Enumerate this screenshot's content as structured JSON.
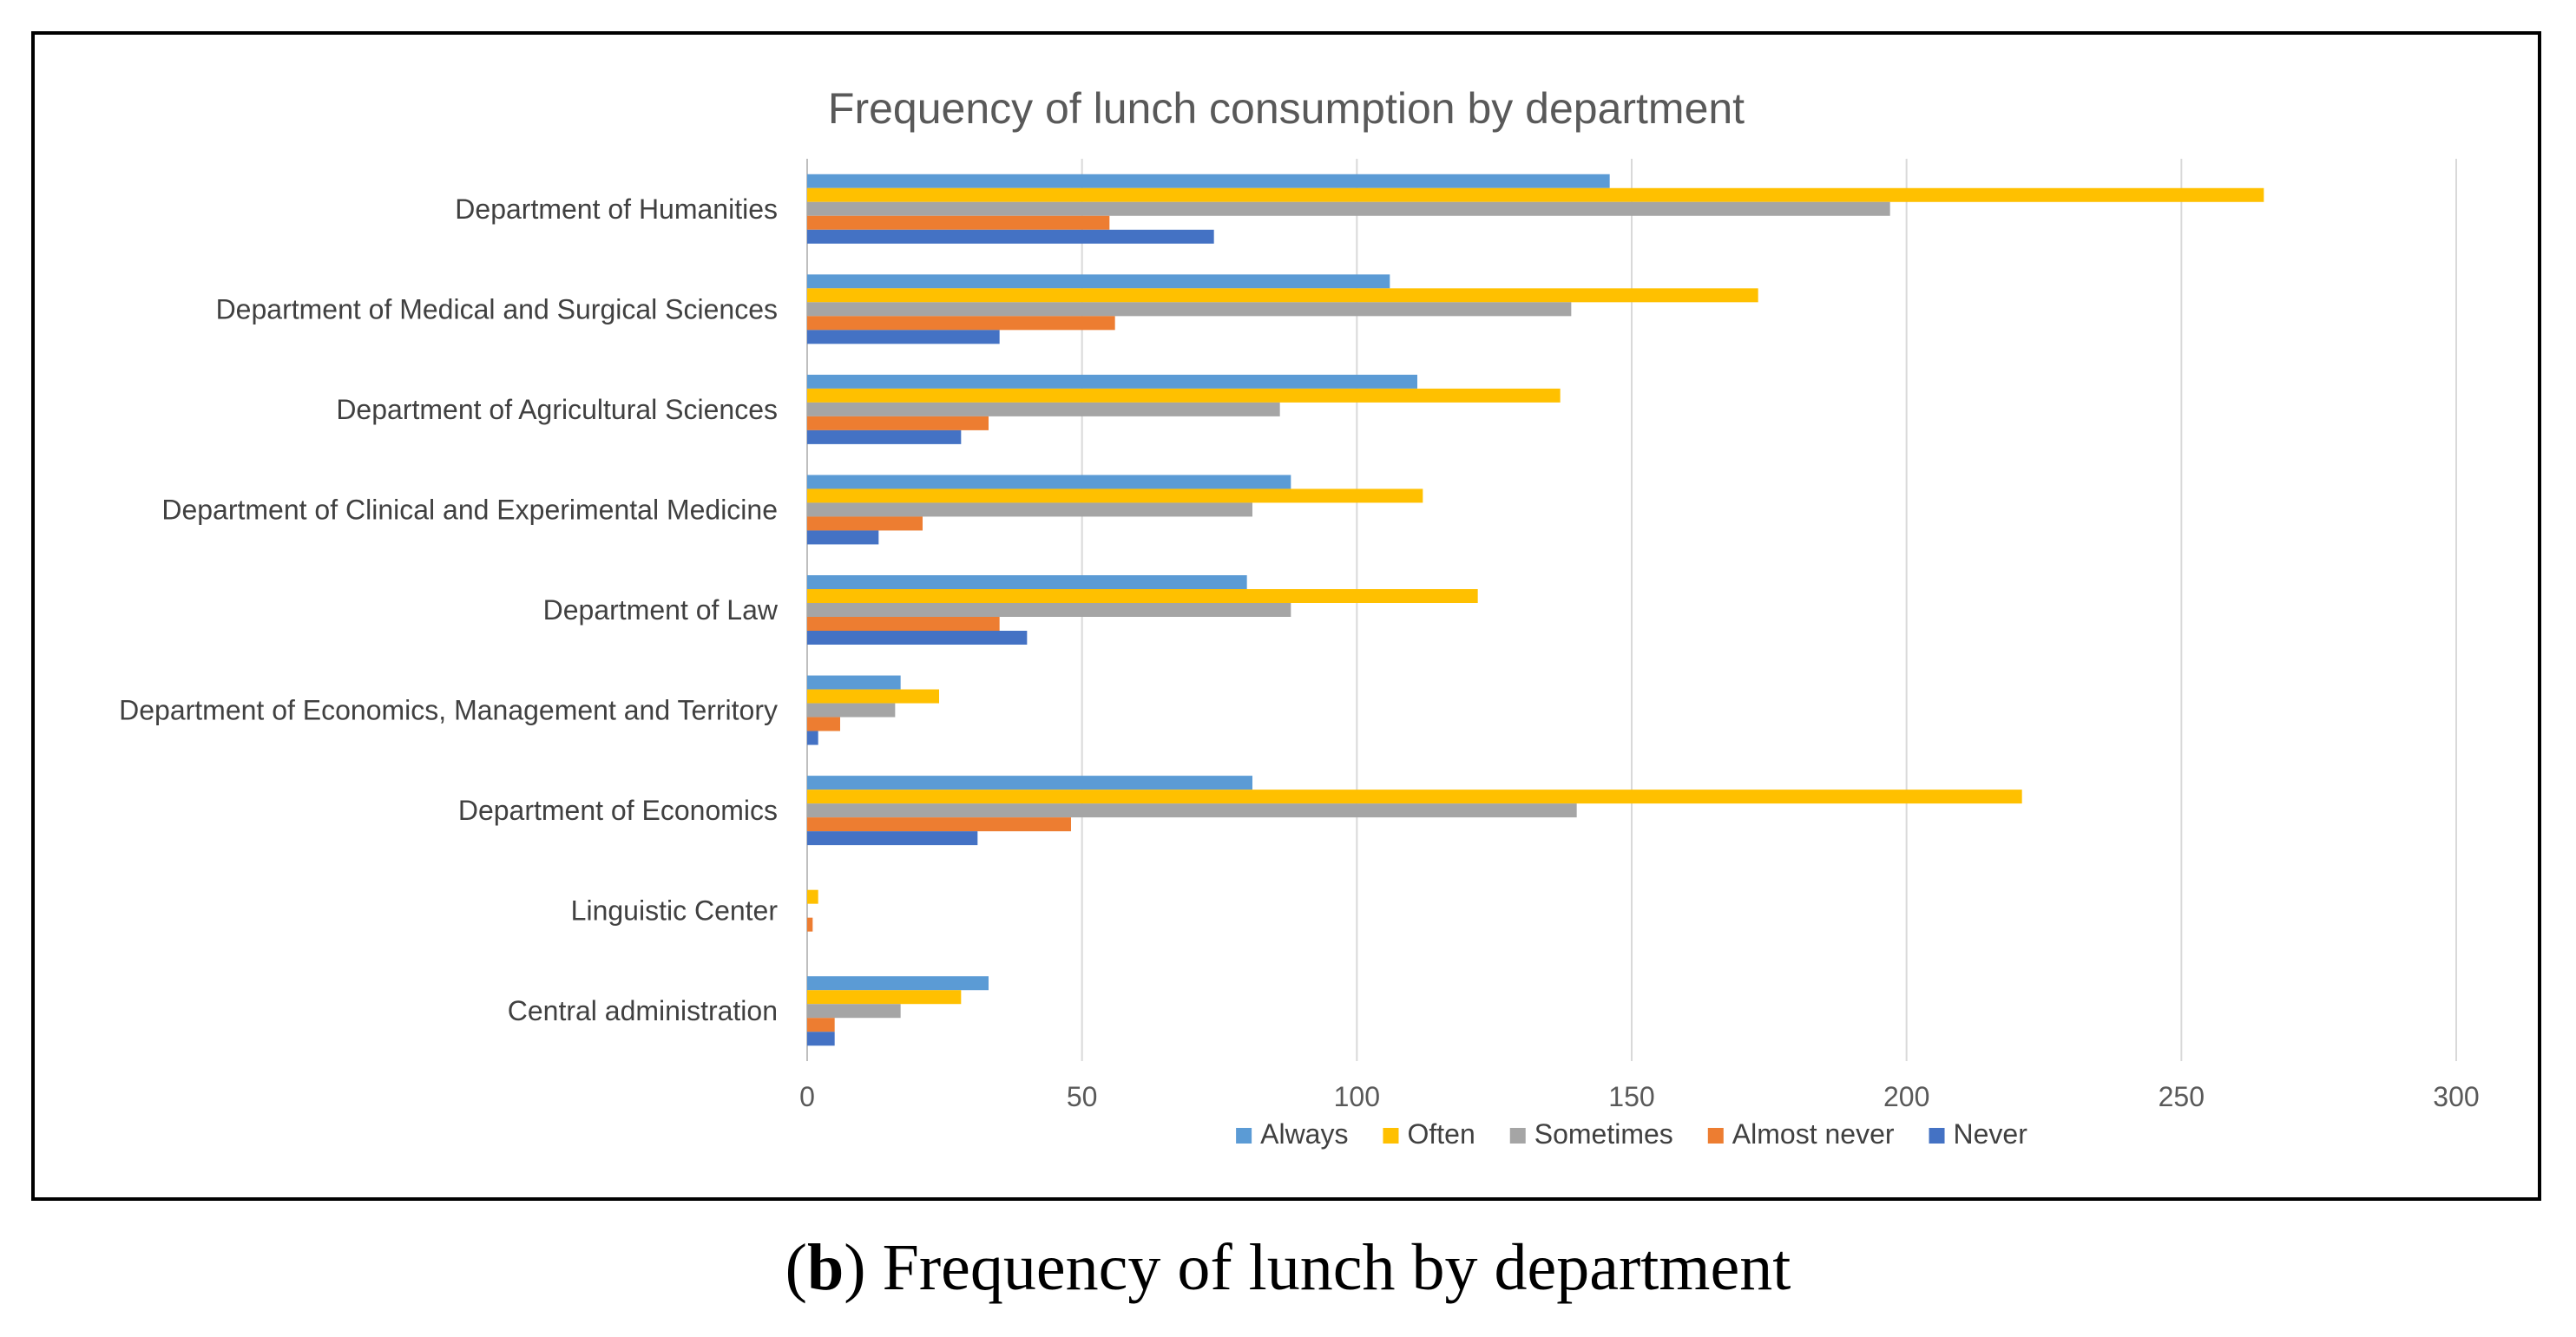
{
  "chart_data": {
    "type": "bar",
    "orientation": "horizontal",
    "title": "Frequency of lunch consumption by department",
    "xlabel": "",
    "ylabel": "",
    "xlim": [
      0,
      300
    ],
    "xticks": [
      0,
      50,
      100,
      150,
      200,
      250,
      300
    ],
    "grid": true,
    "legend_position": "bottom",
    "categories": [
      "Department of Humanities",
      "Department of Medical and Surgical Sciences",
      "Department of Agricultural Sciences",
      "Department of Clinical and Experimental Medicine",
      "Department of Law",
      "Department of Economics, Management and Territory",
      "Department of Economics",
      "Linguistic Center",
      "Central administration"
    ],
    "series": [
      {
        "name": "Always",
        "color": "#5B9BD5",
        "values": [
          146,
          106,
          111,
          88,
          80,
          17,
          81,
          0,
          33
        ]
      },
      {
        "name": "Often",
        "color": "#FFC000",
        "values": [
          265,
          173,
          137,
          112,
          122,
          24,
          221,
          2,
          28
        ]
      },
      {
        "name": "Sometimes",
        "color": "#A5A5A5",
        "values": [
          197,
          139,
          86,
          81,
          88,
          16,
          140,
          0,
          17
        ]
      },
      {
        "name": "Almost never",
        "color": "#ED7D31",
        "values": [
          55,
          56,
          33,
          21,
          35,
          6,
          48,
          1,
          5
        ]
      },
      {
        "name": "Never",
        "color": "#4472C4",
        "values": [
          74,
          35,
          28,
          13,
          40,
          2,
          31,
          0,
          5
        ]
      }
    ]
  },
  "caption": {
    "label": "b",
    "text": "Frequency of lunch by department"
  }
}
